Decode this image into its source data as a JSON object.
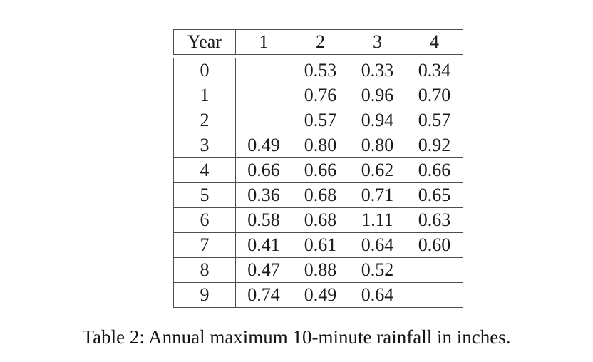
{
  "table": {
    "headers": [
      "Year",
      "1",
      "2",
      "3",
      "4"
    ],
    "rows": [
      {
        "cells": [
          "0",
          "",
          "0.53",
          "0.33",
          "0.34"
        ]
      },
      {
        "cells": [
          "1",
          "",
          "0.76",
          "0.96",
          "0.70"
        ]
      },
      {
        "cells": [
          "2",
          "",
          "0.57",
          "0.94",
          "0.57"
        ]
      },
      {
        "cells": [
          "3",
          "0.49",
          "0.80",
          "0.80",
          "0.92"
        ]
      },
      {
        "cells": [
          "4",
          "0.66",
          "0.66",
          "0.62",
          "0.66"
        ]
      },
      {
        "cells": [
          "5",
          "0.36",
          "0.68",
          "0.71",
          "0.65"
        ]
      },
      {
        "cells": [
          "6",
          "0.58",
          "0.68",
          "1.11",
          "0.63"
        ]
      },
      {
        "cells": [
          "7",
          "0.41",
          "0.61",
          "0.64",
          "0.60"
        ]
      },
      {
        "cells": [
          "8",
          "0.47",
          "0.88",
          "0.52",
          ""
        ]
      },
      {
        "cells": [
          "9",
          "0.74",
          "0.49",
          "0.64",
          ""
        ]
      }
    ]
  },
  "caption": {
    "text": "Table 2: Annual maximum 10-minute rainfall in inches."
  },
  "colors": {
    "rule": "#4d4d4d",
    "text": "#1b1b1b",
    "background": "#ffffff"
  }
}
